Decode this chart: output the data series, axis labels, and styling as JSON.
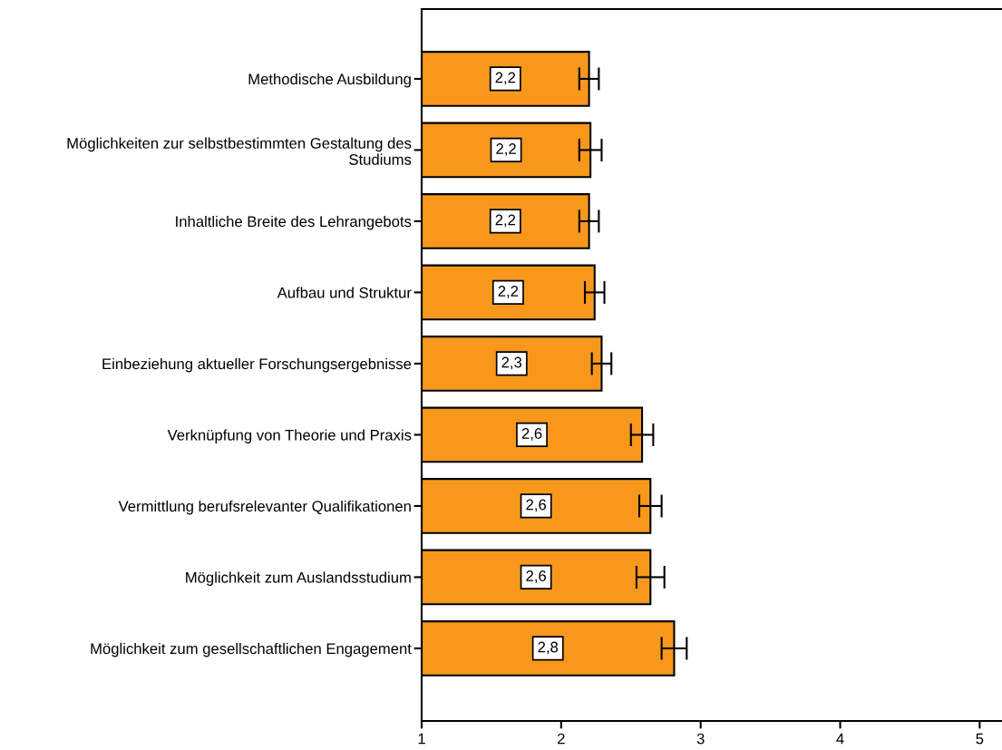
{
  "chart_data": {
    "type": "bar",
    "orientation": "horizontal",
    "categories": [
      "Methodische Ausbildung",
      "Möglichkeiten zur selbstbestimmten Gestaltung des\nStudiums",
      "Inhaltliche Breite des Lehrangebots",
      "Aufbau und Struktur",
      "Einbeziehung aktueller Forschungsergebnisse",
      "Verknüpfung von Theorie und Praxis",
      "Vermittlung berufsrelevanter Qualifikationen",
      "Möglichkeit zum Auslandsstudium",
      "Möglichkeit zum gesellschaftlichen Engagement"
    ],
    "values": [
      2.2,
      2.21,
      2.2,
      2.24,
      2.29,
      2.58,
      2.64,
      2.64,
      2.81
    ],
    "errors": [
      0.07,
      0.08,
      0.07,
      0.07,
      0.07,
      0.08,
      0.08,
      0.1,
      0.09
    ],
    "value_labels": [
      "2,2",
      "2,2",
      "2,2",
      "2,2",
      "2,3",
      "2,6",
      "2,6",
      "2,6",
      "2,8"
    ],
    "color": "#f7981d",
    "xlim": [
      1,
      5.16
    ],
    "xticks": [
      1,
      2,
      3,
      4,
      5
    ],
    "grid": false,
    "legend": false
  }
}
